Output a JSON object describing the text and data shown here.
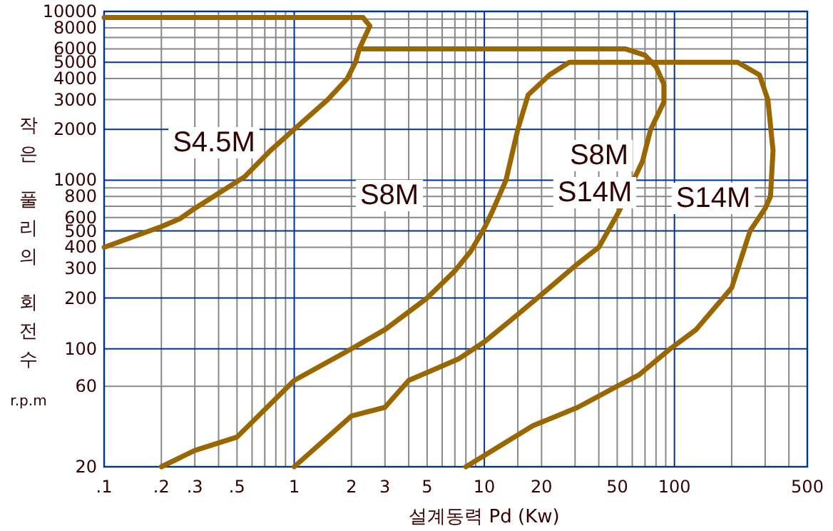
{
  "chart_data": {
    "type": "line",
    "xlabel": "설계동력 Pd (Kw)",
    "ylabel": "작은 풀리의 회전수 r.p.m",
    "log": "xy",
    "grid": true,
    "marker": "none",
    "line_style": "solid",
    "xlim": [
      0.1,
      500
    ],
    "ylim": [
      20,
      10000
    ],
    "xticks": [
      {
        "value": 0.1,
        "label": ".1"
      },
      {
        "value": 0.2,
        "label": ".2"
      },
      {
        "value": 0.3,
        "label": ".3"
      },
      {
        "value": 0.4,
        "label": null
      },
      {
        "value": 0.5,
        "label": ".5"
      },
      {
        "value": 0.6,
        "label": null
      },
      {
        "value": 0.7,
        "label": null
      },
      {
        "value": 0.8,
        "label": null
      },
      {
        "value": 0.9,
        "label": null
      },
      1,
      2,
      3,
      {
        "value": 4,
        "label": null
      },
      5,
      {
        "value": 6,
        "label": null
      },
      {
        "value": 7,
        "label": null
      },
      {
        "value": 8,
        "label": null
      },
      {
        "value": 9,
        "label": null
      },
      10,
      {
        "value": 15,
        "label": null
      },
      20,
      {
        "value": 30,
        "label": null
      },
      {
        "value": 40,
        "label": null
      },
      50,
      {
        "value": 60,
        "label": null
      },
      {
        "value": 70,
        "label": null
      },
      {
        "value": 80,
        "label": null
      },
      {
        "value": 90,
        "label": null
      },
      100,
      {
        "value": 200,
        "label": null
      },
      {
        "value": 300,
        "label": null
      },
      {
        "value": 400,
        "label": null
      },
      500
    ],
    "yticks": [
      20,
      60,
      100,
      200,
      300,
      400,
      500,
      600,
      {
        "value": 700,
        "label": null
      },
      800,
      {
        "value": 900,
        "label": null
      },
      1000,
      2000,
      3000,
      4000,
      5000,
      6000,
      {
        "value": 7000,
        "label": null
      },
      8000,
      {
        "value": 9000,
        "label": null
      },
      10000
    ],
    "annotations": [
      "S4.5M",
      "S8M",
      "S8M",
      "S14M",
      "S14M"
    ],
    "series": [
      {
        "color": "#996600",
        "x": [
          0.1,
          2.3,
          2.5,
          2.2,
          2.1,
          1.9,
          1.5,
          1,
          0.75,
          0.55,
          0.3,
          0.25,
          0.2,
          0.1
        ],
        "values": [
          9200,
          9200,
          8200,
          6000,
          5000,
          4000,
          3000,
          2000,
          1500,
          1050,
          680,
          590,
          530,
          400
        ]
      },
      {
        "color": "#996600",
        "x": [
          2.2,
          55,
          70,
          80,
          88,
          88,
          75,
          68,
          51,
          40,
          30,
          19,
          14,
          10,
          7.3,
          4,
          3,
          2,
          1
        ],
        "values": [
          6000,
          6000,
          5500,
          4700,
          3700,
          2900,
          2000,
          1300,
          650,
          400,
          310,
          200,
          150,
          110,
          87,
          65,
          45,
          40,
          20
        ]
      },
      {
        "color": "#996600",
        "x": [
          0.2,
          0.3,
          0.5,
          1,
          2,
          3,
          5,
          7,
          8.5,
          10,
          11,
          13,
          15,
          17,
          22,
          28,
          215,
          280,
          310,
          330,
          320,
          300,
          250,
          200,
          130,
          95,
          65,
          50,
          31,
          18,
          8
        ],
        "values": [
          20,
          25,
          30,
          65,
          100,
          130,
          200,
          290,
          380,
          520,
          650,
          1000,
          2000,
          3200,
          4200,
          5000,
          5000,
          4200,
          3000,
          1500,
          800,
          680,
          500,
          230,
          130,
          100,
          70,
          60,
          45,
          35,
          20
        ]
      }
    ]
  }
}
